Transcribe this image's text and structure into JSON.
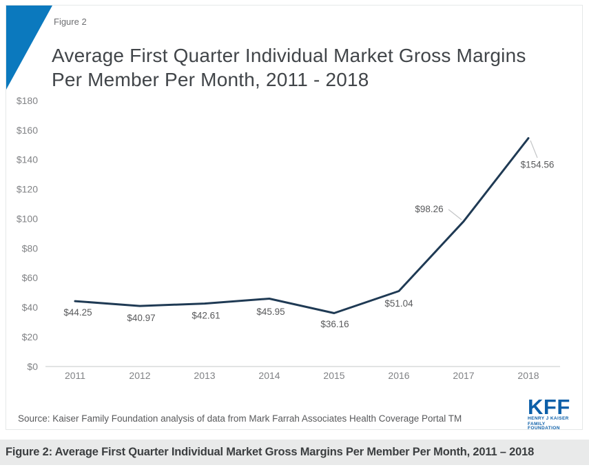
{
  "figure": {
    "label": "Figure 2"
  },
  "header": {
    "title": "Average First Quarter Individual Market Gross Margins Per Member Per Month, 2011 - 2018"
  },
  "chart_data": {
    "type": "line",
    "title": "Average First Quarter Individual Market Gross Margins Per Member Per Month, 2011 - 2018",
    "categories": [
      "2011",
      "2012",
      "2013",
      "2014",
      "2015",
      "2016",
      "2017",
      "2018"
    ],
    "values": [
      44.25,
      40.97,
      42.61,
      45.95,
      36.16,
      51.04,
      98.26,
      154.56
    ],
    "point_labels": [
      "$44.25",
      "$40.97",
      "$42.61",
      "$45.95",
      "$36.16",
      "$51.04",
      "$98.26",
      "$154.56"
    ],
    "xlabel": "",
    "ylabel": "",
    "ylim": [
      0,
      180
    ],
    "y_ticks": [
      {
        "value": 180,
        "label": "$180"
      },
      {
        "value": 160,
        "label": "$160"
      },
      {
        "value": 140,
        "label": "$140"
      },
      {
        "value": 120,
        "label": "$120"
      },
      {
        "value": 100,
        "label": "$100"
      },
      {
        "value": 80,
        "label": "$80"
      },
      {
        "value": 60,
        "label": "$60"
      },
      {
        "value": 40,
        "label": "$40"
      },
      {
        "value": 20,
        "label": "$20"
      },
      {
        "value": 0,
        "label": "$0"
      }
    ],
    "grid": "baseline-only",
    "legend": "none"
  },
  "source": {
    "text": "Source: Kaiser Family Foundation analysis of data from Mark Farrah Associates Health Coverage Portal TM"
  },
  "logo": {
    "text": "KFF",
    "sub_line1": "HENRY J KAISER",
    "sub_line2": "FAMILY FOUNDATION"
  },
  "caption": {
    "text": "Figure 2: Average First Quarter Individual Market Gross Margins Per Member Per Month, 2011 – 2018"
  },
  "colors": {
    "accent_triangle": "#0b79be",
    "line": "#1f3a54",
    "logo_blue": "#0c5fa8",
    "caption_bg": "#e9eaea",
    "axis_line": "#d9dbdb",
    "leader_line": "#c3c5c7",
    "label_gray": "#58595b",
    "tick_gray": "#808285"
  }
}
